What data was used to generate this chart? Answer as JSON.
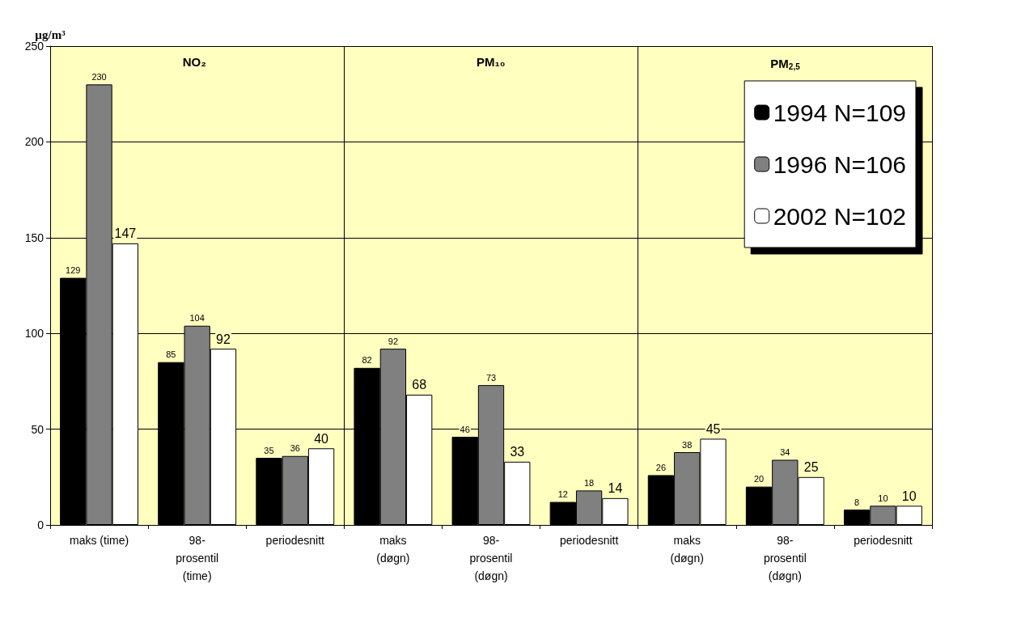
{
  "chart_data": {
    "type": "bar",
    "ylabel": "µg/m³",
    "categories": [
      "maks (time)",
      "98-\nprosentil\n(time)",
      "periodesnitt",
      "maks\n(døgn)",
      "98-\nprosentil\n(døgn)",
      "periodesnitt",
      "maks\n(døgn)",
      "98-\nprosentil\n(døgn)",
      "periodesnitt"
    ],
    "series": [
      {
        "name": "1994 N=109",
        "color": "#000000",
        "values": [
          129,
          85,
          35,
          82,
          46,
          12,
          26,
          20,
          8
        ]
      },
      {
        "name": "1996 N=106",
        "color": "#808080",
        "values": [
          230,
          104,
          36,
          92,
          73,
          18,
          38,
          34,
          10
        ]
      },
      {
        "name": "2002 N=102",
        "color": "#ffffff",
        "values": [
          147,
          92,
          40,
          68,
          33,
          14,
          45,
          25,
          10
        ]
      }
    ],
    "annotations": [
      "NO₂",
      "PM₁₀",
      "PM$_{2,5}$"
    ],
    "ylim": [
      0,
      250
    ],
    "yticks": [
      0,
      50,
      100,
      150,
      200,
      250
    ],
    "grid": "y",
    "legend": "top right",
    "data_labels": true
  }
}
